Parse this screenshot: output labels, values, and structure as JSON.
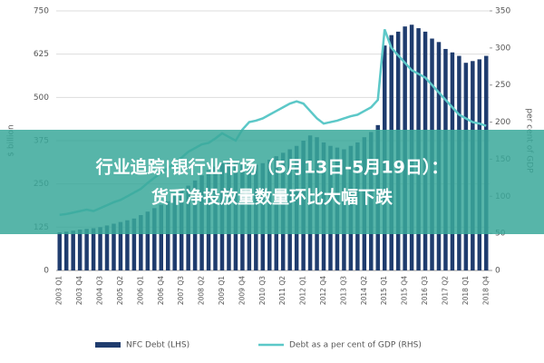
{
  "chart_data": {
    "type": "bar-line",
    "y_label": "$ billion",
    "y2_label": "per cent of GDP",
    "categories": [
      "2003 Q1",
      null,
      null,
      "2003 Q4",
      null,
      null,
      "2004 Q3",
      null,
      null,
      "2005 Q2",
      null,
      null,
      "2006 Q1",
      null,
      null,
      "2006 Q4",
      null,
      null,
      "2007 Q3",
      null,
      null,
      "2008 Q2",
      null,
      null,
      "2009 Q1",
      null,
      null,
      "2009 Q4",
      null,
      null,
      "2010 Q3",
      null,
      null,
      "2011 Q2",
      null,
      null,
      "2012 Q1",
      null,
      null,
      "2012 Q4",
      null,
      null,
      "2013 Q3",
      null,
      null,
      "2014 Q2",
      null,
      null,
      "2015 Q1",
      null,
      null,
      "2015 Q4",
      null,
      null,
      "2016 Q3",
      null,
      null,
      "2017 Q2",
      null,
      null,
      "2018 Q1",
      null,
      null,
      "2018 Q4"
    ],
    "series": [
      {
        "name": "NFC Debt (LHS)",
        "color": "#1f3c6e",
        "kind": "bar",
        "axis": "y",
        "values": [
          110,
          112,
          115,
          118,
          120,
          122,
          125,
          130,
          135,
          140,
          145,
          150,
          160,
          170,
          180,
          190,
          200,
          215,
          230,
          245,
          260,
          275,
          290,
          300,
          310,
          315,
          310,
          305,
          300,
          305,
          310,
          320,
          330,
          340,
          350,
          360,
          375,
          390,
          385,
          370,
          360,
          355,
          350,
          360,
          370,
          385,
          400,
          420,
          650,
          680,
          690,
          705,
          710,
          700,
          690,
          670,
          660,
          640,
          630,
          620,
          600,
          605,
          610,
          620
        ]
      },
      {
        "name": "Debt as a per cent of GDP (RHS)",
        "color": "#5cc8c8",
        "kind": "line",
        "axis": "y2",
        "values": [
          75,
          76,
          78,
          80,
          82,
          80,
          84,
          88,
          92,
          95,
          100,
          105,
          110,
          118,
          125,
          132,
          138,
          145,
          152,
          160,
          165,
          170,
          172,
          178,
          185,
          180,
          175,
          190,
          200,
          202,
          205,
          210,
          215,
          220,
          225,
          228,
          225,
          215,
          205,
          198,
          200,
          202,
          205,
          208,
          210,
          215,
          220,
          230,
          325,
          300,
          290,
          280,
          270,
          265,
          260,
          250,
          240,
          230,
          220,
          210,
          205,
          200,
          198,
          195
        ]
      }
    ],
    "ylim": [
      0,
      750
    ],
    "yticks": [
      0,
      125,
      250,
      375,
      500,
      625,
      750
    ],
    "y2lim": [
      0,
      350
    ],
    "y2ticks": [
      0,
      50,
      100,
      150,
      200,
      250,
      300,
      350
    ],
    "grid": true
  },
  "banner": {
    "lines": [
      "行业追踪|银行业市场（5月13日-5月19日）：",
      "货币净投放量数量环比大幅下跌"
    ]
  }
}
